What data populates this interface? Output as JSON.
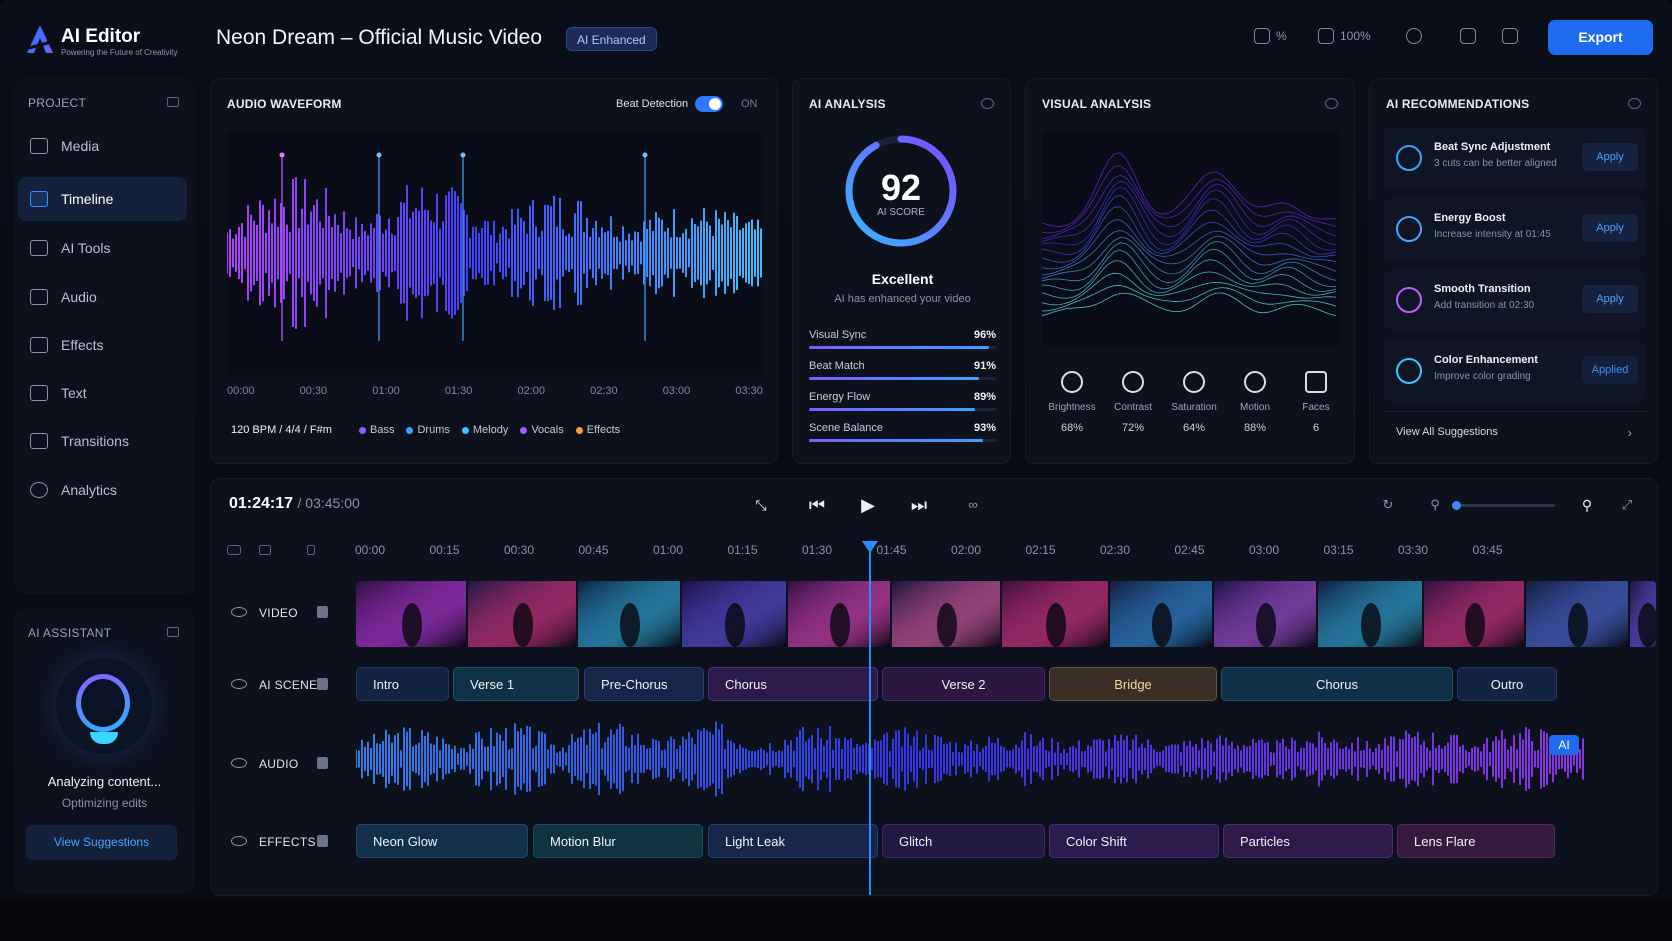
{
  "brand": {
    "name": "AI Editor",
    "tagline": "Powering the Future of Creativity"
  },
  "header": {
    "project_title": "Neon Dream – Official Music Video",
    "badge": "AI Enhanced",
    "icon_value_1": "%",
    "zoom": "100%",
    "export_label": "Export"
  },
  "sidebar": {
    "heading": "PROJECT",
    "items": [
      {
        "label": "Media",
        "icon": "folder-icon"
      },
      {
        "label": "Timeline",
        "icon": "timeline-icon"
      },
      {
        "label": "AI Tools",
        "icon": "ai-tools-icon"
      },
      {
        "label": "Audio",
        "icon": "speaker-icon"
      },
      {
        "label": "Effects",
        "icon": "effects-icon"
      },
      {
        "label": "Text",
        "icon": "text-icon"
      },
      {
        "label": "Transitions",
        "icon": "transitions-icon"
      },
      {
        "label": "Analytics",
        "icon": "analytics-icon"
      }
    ],
    "active_index": 1
  },
  "assistant": {
    "heading": "AI ASSISTANT",
    "status": "Analyzing content...",
    "sub": "Optimizing edits",
    "button": "View Suggestions"
  },
  "waveform": {
    "title": "AUDIO WAVEFORM",
    "beat_label": "Beat Detection",
    "beat_state": "ON",
    "times": [
      "00:00",
      "00:30",
      "01:00",
      "01:30",
      "02:00",
      "02:30",
      "03:00",
      "03:30"
    ],
    "bpm": "120 BPM / 4/4 / F#m",
    "legend": [
      {
        "name": "Bass",
        "color": "#8b5cff"
      },
      {
        "name": "Drums",
        "color": "#3aa3ff"
      },
      {
        "name": "Melody",
        "color": "#3ac6ff"
      },
      {
        "name": "Vocals",
        "color": "#a05cff"
      },
      {
        "name": "Effects",
        "color": "#ff9a3a"
      }
    ]
  },
  "analysis": {
    "title": "AI ANALYSIS",
    "score": "92",
    "score_label": "AI SCORE",
    "score_fraction": 0.92,
    "rating": "Excellent",
    "rating_sub": "AI has enhanced your video",
    "metrics": [
      {
        "name": "Visual Sync",
        "value": "96%",
        "fraction": 0.96
      },
      {
        "name": "Beat Match",
        "value": "91%",
        "fraction": 0.91
      },
      {
        "name": "Energy Flow",
        "value": "89%",
        "fraction": 0.89
      },
      {
        "name": "Scene Balance",
        "value": "93%",
        "fraction": 0.93
      }
    ]
  },
  "visual": {
    "title": "VISUAL ANALYSIS",
    "stats": [
      {
        "name": "Brightness",
        "value": "68%",
        "icon": "sun-icon"
      },
      {
        "name": "Contrast",
        "value": "72%",
        "icon": "contrast-icon"
      },
      {
        "name": "Saturation",
        "value": "64%",
        "icon": "droplet-icon"
      },
      {
        "name": "Motion",
        "value": "88%",
        "icon": "motion-icon"
      },
      {
        "name": "Faces",
        "value": "6",
        "icon": "face-scan-icon"
      }
    ]
  },
  "recommendations": {
    "title": "AI RECOMMENDATIONS",
    "items": [
      {
        "title": "Beat Sync Adjustment",
        "sub": "3 cuts can be better aligned",
        "action": "Apply",
        "icon": "beat-sync-icon"
      },
      {
        "title": "Energy Boost",
        "sub": "Increase intensity at 01:45",
        "action": "Apply",
        "icon": "energy-icon"
      },
      {
        "title": "Smooth Transition",
        "sub": "Add transition at 02:30",
        "action": "Apply",
        "icon": "transition-icon"
      },
      {
        "title": "Color Enhancement",
        "sub": "Improve color grading",
        "action": "Applied",
        "icon": "color-icon"
      }
    ],
    "view_all": "View All Suggestions"
  },
  "timeline": {
    "current": "01:24:17",
    "total": "/ 03:45:00",
    "ruler": [
      "00:00",
      "00:15",
      "00:30",
      "00:45",
      "01:00",
      "01:15",
      "01:30",
      "01:45",
      "02:00",
      "02:15",
      "02:30",
      "02:45",
      "03:00",
      "03:15",
      "03:30",
      "03:45"
    ],
    "tracks": {
      "video": "VIDEO",
      "scenes": "AI SCENES",
      "audio": "AUDIO",
      "effects": "EFFECTS"
    },
    "scenes": [
      "Intro",
      "Verse 1",
      "Pre-Chorus",
      "Chorus",
      "Verse 2",
      "Bridge",
      "Chorus",
      "Outro"
    ],
    "effects": [
      "Neon Glow",
      "Motion Blur",
      "Light Leak",
      "Glitch",
      "Color Shift",
      "Particles",
      "Lens Flare"
    ],
    "ai_tag": "AI"
  }
}
